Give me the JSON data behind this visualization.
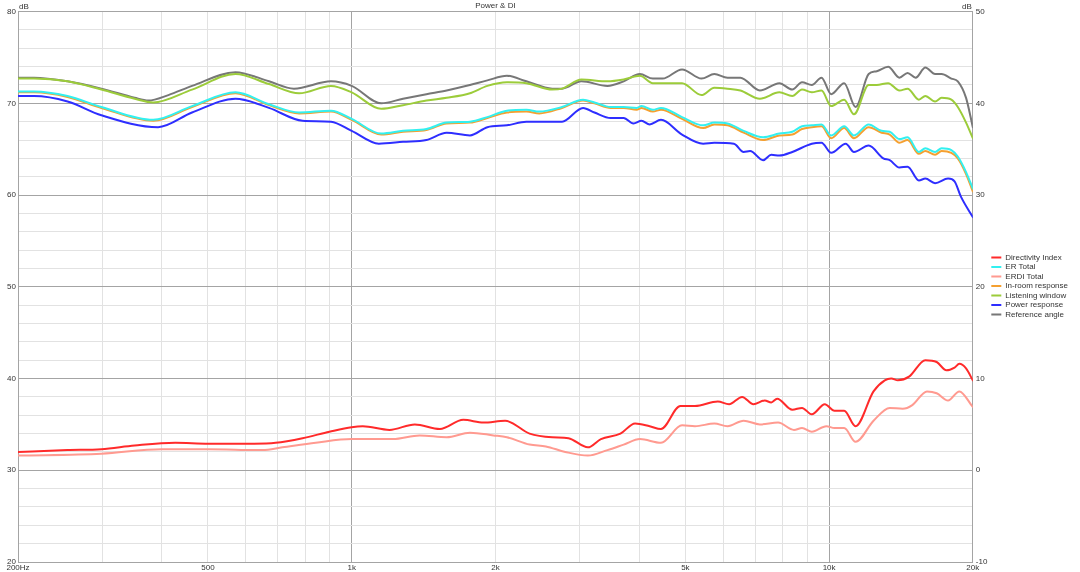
{
  "chart_data": {
    "type": "line",
    "title": "Power & DI",
    "ylabel": "dB",
    "y2label": "dB",
    "log": "x",
    "grid": true,
    "legend": "right",
    "xlim": [
      200,
      20000
    ],
    "ylim": [
      20,
      80
    ],
    "y2lim": [
      -10,
      50
    ],
    "xticks": [
      {
        "value": 200,
        "label": "200Hz"
      },
      {
        "value": 300,
        "label": null
      },
      {
        "value": 400,
        "label": null
      },
      500,
      {
        "value": 600,
        "label": null
      },
      {
        "value": 700,
        "label": null
      },
      {
        "value": 800,
        "label": null
      },
      {
        "value": 900,
        "label": null
      },
      {
        "value": 1000,
        "label": "1k"
      },
      {
        "value": 2000,
        "label": "2k"
      },
      {
        "value": 3000,
        "label": null
      },
      {
        "value": 4000,
        "label": null
      },
      {
        "value": 5000,
        "label": "5k"
      },
      {
        "value": 6000,
        "label": null
      },
      {
        "value": 7000,
        "label": null
      },
      {
        "value": 8000,
        "label": null
      },
      {
        "value": 9000,
        "label": null
      },
      {
        "value": 10000,
        "label": "10k"
      },
      {
        "value": 20000,
        "label": "20k"
      }
    ],
    "yticks": [
      20,
      {
        "value": 22,
        "label": null
      },
      {
        "value": 24,
        "label": null
      },
      {
        "value": 26,
        "label": null
      },
      {
        "value": 28,
        "label": null
      },
      30,
      {
        "value": 32,
        "label": null
      },
      {
        "value": 34,
        "label": null
      },
      {
        "value": 36,
        "label": null
      },
      {
        "value": 38,
        "label": null
      },
      40,
      {
        "value": 42,
        "label": null
      },
      {
        "value": 44,
        "label": null
      },
      {
        "value": 46,
        "label": null
      },
      {
        "value": 48,
        "label": null
      },
      50,
      {
        "value": 52,
        "label": null
      },
      {
        "value": 54,
        "label": null
      },
      {
        "value": 56,
        "label": null
      },
      {
        "value": 58,
        "label": null
      },
      60,
      {
        "value": 62,
        "label": null
      },
      {
        "value": 64,
        "label": null
      },
      {
        "value": 66,
        "label": null
      },
      {
        "value": 68,
        "label": null
      },
      70,
      {
        "value": 72,
        "label": null
      },
      {
        "value": 74,
        "label": null
      },
      {
        "value": 76,
        "label": null
      },
      {
        "value": 78,
        "label": null
      },
      80
    ],
    "y2ticks": [
      -10,
      0,
      10,
      20,
      30,
      40,
      50
    ],
    "series": [
      {
        "name": "Directivity Index",
        "color": "#ff2a2a",
        "axis": "y2",
        "x": [
          200,
          254,
          299,
          351,
          427,
          501,
          619,
          693,
          789,
          898,
          1000,
          1055,
          1200,
          1356,
          1530,
          1713,
          1888,
          2096,
          2359,
          2631,
          2845,
          3124,
          3327,
          3655,
          3923,
          4209,
          4445,
          4881,
          5237,
          5846,
          6173,
          6574,
          6941,
          7333,
          7567,
          7783,
          8374,
          8776,
          9199,
          9796,
          10264,
          10755,
          11363,
          12390,
          13081,
          13497,
          13929,
          14706,
          15908,
          16804,
          17612,
          18314,
          18742,
          19359,
          20000
        ],
        "values": [
          2.0,
          2.2,
          2.3,
          2.7,
          3.0,
          2.9,
          2.9,
          3.0,
          3.5,
          4.2,
          4.7,
          4.8,
          4.4,
          5.0,
          4.5,
          5.5,
          5.2,
          5.4,
          4.0,
          3.6,
          3.5,
          2.5,
          3.4,
          4.0,
          5.1,
          4.8,
          4.5,
          7.0,
          7.0,
          7.5,
          7.2,
          8.0,
          7.2,
          7.6,
          7.4,
          7.8,
          6.6,
          6.8,
          6.1,
          7.2,
          6.5,
          6.5,
          4.8,
          8.6,
          9.8,
          10.0,
          9.8,
          10.2,
          12.0,
          11.8,
          10.9,
          11.2,
          11.6,
          11.1,
          9.8
        ]
      },
      {
        "name": "ER Total",
        "color": "#33f0f0",
        "x": [
          200,
          216,
          254,
          299,
          384,
          463,
          571,
          671,
          776,
          905,
          1000,
          1153,
          1281,
          1434,
          1581,
          1769,
          1924,
          2114,
          2322,
          2472,
          2758,
          3052,
          3225,
          3488,
          3713,
          3953,
          4046,
          4274,
          4445,
          4920,
          5448,
          5750,
          6126,
          6622,
          7275,
          7867,
          8374,
          8776,
          9199,
          9641,
          10101,
          10755,
          11275,
          12103,
          12884,
          13396,
          14037,
          14602,
          15418,
          15908,
          16672,
          17203,
          18033,
          18604,
          19359,
          20000
        ],
        "values": [
          71.3,
          71.3,
          70.8,
          69.6,
          68.2,
          69.7,
          71.2,
          69.9,
          69.0,
          69.2,
          68.3,
          66.7,
          67.0,
          67.2,
          67.9,
          68.0,
          68.5,
          69.2,
          69.3,
          69.1,
          69.6,
          70.4,
          70.1,
          69.6,
          69.6,
          69.5,
          69.7,
          69.3,
          69.5,
          68.5,
          67.6,
          67.9,
          67.8,
          67.0,
          66.3,
          66.7,
          66.9,
          67.5,
          67.6,
          67.7,
          66.5,
          67.5,
          66.5,
          67.7,
          67.0,
          66.9,
          66.1,
          66.3,
          64.7,
          65.1,
          64.7,
          65.1,
          64.9,
          64.2,
          62.5,
          60.7
        ]
      },
      {
        "name": "ERDI Total",
        "color": "#ff9a90",
        "axis": "y2",
        "x": [
          200,
          299,
          400,
          501,
          650,
          716,
          841,
          1000,
          1089,
          1220,
          1388,
          1581,
          1769,
          1981,
          2114,
          2359,
          2551,
          2801,
          3124,
          3433,
          3713,
          4016,
          4445,
          4920,
          5237,
          5750,
          6126,
          6622,
          7162,
          7818,
          8443,
          8776,
          9199,
          9869,
          10264,
          10755,
          11363,
          12390,
          13396,
          14257,
          14938,
          16034,
          16804,
          17748,
          18742,
          20000
        ],
        "values": [
          1.6,
          1.8,
          2.3,
          2.3,
          2.2,
          2.5,
          3.0,
          3.4,
          3.4,
          3.4,
          3.8,
          3.6,
          4.1,
          3.8,
          3.6,
          2.8,
          2.6,
          2.0,
          1.6,
          2.2,
          2.8,
          3.4,
          3.0,
          4.9,
          4.8,
          5.1,
          4.8,
          5.4,
          5.0,
          5.2,
          4.4,
          4.6,
          4.2,
          4.8,
          4.6,
          4.6,
          3.1,
          5.4,
          6.8,
          6.7,
          7.1,
          8.6,
          8.4,
          7.6,
          8.6,
          6.9
        ]
      },
      {
        "name": "In-room response",
        "color": "#f5a030",
        "x": [
          200,
          216,
          254,
          299,
          384,
          463,
          571,
          671,
          776,
          905,
          1000,
          1153,
          1281,
          1434,
          1581,
          1769,
          1924,
          2114,
          2322,
          2472,
          2758,
          3052,
          3225,
          3488,
          3713,
          3953,
          4046,
          4274,
          4445,
          4920,
          5448,
          5750,
          6126,
          6622,
          7275,
          7867,
          8374,
          8776,
          9199,
          9641,
          10101,
          10755,
          11275,
          12103,
          12884,
          13396,
          14037,
          14602,
          15418,
          15908,
          16672,
          17203,
          18033,
          18604,
          19359,
          20000
        ],
        "values": [
          71.2,
          71.2,
          70.7,
          69.5,
          68.1,
          69.6,
          71.1,
          69.8,
          68.9,
          69.1,
          68.2,
          66.6,
          66.9,
          67.1,
          67.8,
          67.9,
          68.4,
          69.0,
          69.1,
          68.9,
          69.5,
          70.3,
          70.0,
          69.5,
          69.5,
          69.3,
          69.5,
          69.1,
          69.3,
          68.3,
          67.3,
          67.7,
          67.6,
          66.8,
          66.0,
          66.5,
          66.6,
          67.2,
          67.4,
          67.5,
          66.2,
          67.3,
          66.2,
          67.4,
          66.8,
          66.6,
          65.7,
          66.0,
          64.5,
          64.8,
          64.4,
          64.8,
          64.6,
          64.0,
          62.3,
          60.4
        ]
      },
      {
        "name": "Listening window",
        "color": "#9ccc3a",
        "x": [
          200,
          216,
          254,
          299,
          351,
          384,
          463,
          571,
          671,
          776,
          905,
          1000,
          1153,
          1281,
          1434,
          1581,
          1769,
          1924,
          2114,
          2322,
          2631,
          2758,
          3029,
          3433,
          3713,
          4016,
          4274,
          4480,
          4920,
          5405,
          5750,
          6126,
          6519,
          7162,
          7867,
          8374,
          8776,
          9199,
          9641,
          10101,
          10755,
          11275,
          12103,
          12585,
          13295,
          14037,
          14602,
          15418,
          15908,
          16672,
          17203,
          18033,
          18604,
          19359,
          20000
        ],
        "values": [
          72.7,
          72.7,
          72.4,
          71.5,
          70.5,
          70.1,
          71.5,
          73.2,
          72.1,
          71.1,
          71.9,
          71.2,
          69.4,
          69.8,
          70.3,
          70.6,
          71.1,
          71.9,
          72.3,
          72.2,
          71.5,
          71.6,
          72.6,
          72.4,
          72.6,
          73.0,
          72.2,
          72.2,
          72.2,
          70.9,
          71.7,
          71.6,
          71.4,
          70.5,
          71.2,
          70.8,
          71.5,
          71.2,
          71.4,
          69.7,
          70.4,
          68.8,
          72.0,
          72.0,
          72.2,
          71.4,
          71.6,
          70.4,
          70.8,
          70.2,
          70.6,
          70.4,
          69.6,
          67.9,
          66.2
        ]
      },
      {
        "name": "Power response",
        "color": "#2e2eff",
        "x": [
          200,
          216,
          254,
          299,
          393,
          463,
          571,
          671,
          789,
          905,
          1000,
          1140,
          1281,
          1434,
          1581,
          1769,
          1924,
          2114,
          2322,
          2472,
          2758,
          3052,
          3225,
          3488,
          3713,
          3892,
          4046,
          4209,
          4445,
          4920,
          5448,
          5750,
          6318,
          6622,
          6832,
          7275,
          7567,
          7867,
          8374,
          9199,
          9641,
          10101,
          10838,
          11275,
          12103,
          12986,
          13396,
          14037,
          14602,
          15418,
          15908,
          16672,
          17748,
          18314,
          18896,
          20000
        ],
        "values": [
          70.8,
          70.8,
          70.2,
          68.7,
          67.4,
          69.0,
          70.5,
          69.5,
          68.1,
          68.0,
          67.0,
          65.6,
          65.8,
          66.0,
          66.8,
          66.5,
          67.4,
          67.6,
          68.0,
          68.0,
          68.0,
          69.5,
          69.0,
          68.4,
          68.4,
          67.8,
          68.1,
          67.7,
          68.2,
          66.6,
          65.6,
          65.7,
          65.6,
          64.7,
          64.8,
          63.8,
          64.4,
          64.3,
          64.7,
          65.6,
          65.7,
          64.6,
          65.6,
          64.7,
          65.4,
          64.0,
          63.8,
          63.0,
          63.1,
          61.6,
          61.8,
          61.3,
          61.8,
          61.5,
          59.8,
          57.6
        ]
      },
      {
        "name": "Reference angle",
        "color": "#777777",
        "x": [
          200,
          216,
          254,
          299,
          351,
          375,
          413,
          463,
          571,
          671,
          757,
          905,
          1000,
          1153,
          1281,
          1434,
          1581,
          1769,
          1924,
          2114,
          2322,
          2631,
          2758,
          3029,
          3433,
          3713,
          4016,
          4274,
          4480,
          4920,
          5405,
          5750,
          6126,
          6519,
          7162,
          7867,
          8374,
          8776,
          9199,
          9641,
          10101,
          10755,
          11363,
          12103,
          12585,
          13295,
          14037,
          14602,
          15182,
          15908,
          16672,
          17203,
          18033,
          18604,
          19359,
          20000
        ],
        "values": [
          72.8,
          72.8,
          72.4,
          71.6,
          70.6,
          70.3,
          70.9,
          71.9,
          73.4,
          72.4,
          71.6,
          72.4,
          71.9,
          70.0,
          70.5,
          71.0,
          71.4,
          72.0,
          72.5,
          73.0,
          72.4,
          71.6,
          71.6,
          72.4,
          71.9,
          72.4,
          73.2,
          72.7,
          72.7,
          73.7,
          72.7,
          73.2,
          72.8,
          72.8,
          71.4,
          72.2,
          71.5,
          72.3,
          72.0,
          72.8,
          71.0,
          72.2,
          69.6,
          73.2,
          73.5,
          74.0,
          72.8,
          73.3,
          72.8,
          73.9,
          73.2,
          73.2,
          72.7,
          72.4,
          70.6,
          67.4
        ]
      }
    ]
  }
}
